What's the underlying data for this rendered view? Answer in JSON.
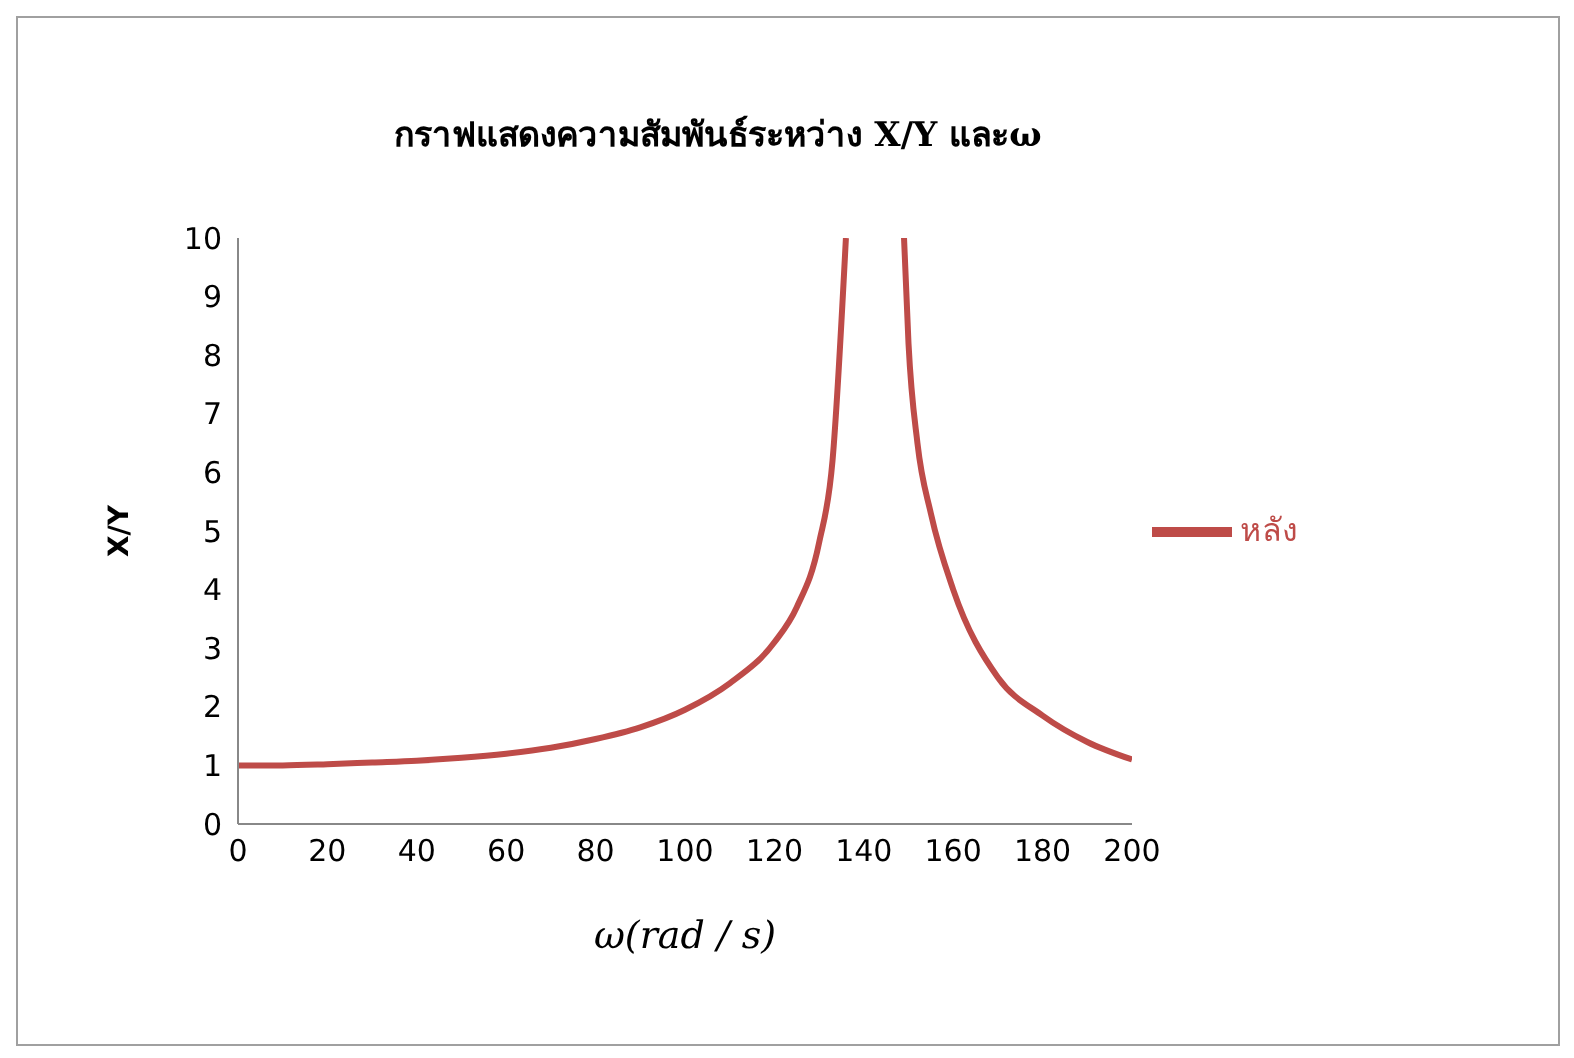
{
  "chart_data": {
    "type": "line",
    "title": "กราฟแสดงความสัมพันธ์ระหว่าง X/Y และω",
    "xlabel": "ω(rad / s)",
    "ylabel": "X/Y",
    "x": [
      0,
      10,
      20,
      30,
      40,
      50,
      60,
      70,
      80,
      90,
      100,
      110,
      120,
      125,
      130,
      133,
      136,
      143,
      149,
      150,
      152,
      155,
      160,
      170,
      180,
      190,
      200
    ],
    "series": [
      {
        "name": "หลัง",
        "color": "#be4b48",
        "values": [
          1,
          1.0,
          1.02,
          1.05,
          1.08,
          1.13,
          1.2,
          1.3,
          1.45,
          1.65,
          1.95,
          2.4,
          3.1,
          3.7,
          4.8,
          6.2,
          10,
          null,
          10,
          8.2,
          6.5,
          5.3,
          4,
          2.5,
          1.85,
          1.4,
          1.1
        ]
      }
    ],
    "xlim": [
      0,
      200
    ],
    "xticks": [
      0,
      20,
      40,
      60,
      80,
      100,
      120,
      140,
      160,
      180,
      200
    ],
    "ylim": [
      0,
      10
    ],
    "yticks": [
      0,
      1,
      2,
      3,
      4,
      5,
      6,
      7,
      8,
      9,
      10
    ],
    "grid": false,
    "legend": "right",
    "marker": "none",
    "line_style": "solid"
  }
}
